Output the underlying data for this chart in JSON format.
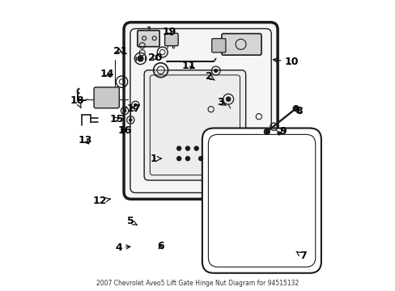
{
  "title": "2007 Chevrolet Aveo5 Lift Gate Hinge Nut Diagram for 94515132",
  "bg": "#ffffff",
  "lc": "#1a1a1a",
  "figsize": [
    4.89,
    3.6
  ],
  "dpi": 100,
  "labels": {
    "1": {
      "txt": [
        0.348,
        0.455
      ],
      "pt": [
        0.385,
        0.455
      ]
    },
    "2": {
      "txt": [
        0.538,
        0.738
      ],
      "pt": [
        0.558,
        0.725
      ]
    },
    "3": {
      "txt": [
        0.578,
        0.648
      ],
      "pt": [
        0.598,
        0.638
      ]
    },
    "4": {
      "txt": [
        0.228,
        0.148
      ],
      "pt": [
        0.278,
        0.152
      ]
    },
    "5": {
      "txt": [
        0.268,
        0.238
      ],
      "pt": [
        0.292,
        0.225
      ]
    },
    "6": {
      "txt": [
        0.372,
        0.152
      ],
      "pt": [
        0.372,
        0.168
      ]
    },
    "7": {
      "txt": [
        0.862,
        0.118
      ],
      "pt": [
        0.838,
        0.135
      ]
    },
    "8": {
      "txt": [
        0.848,
        0.618
      ],
      "pt": [
        0.832,
        0.608
      ]
    },
    "9": {
      "txt": [
        0.792,
        0.548
      ],
      "pt": [
        0.788,
        0.568
      ]
    },
    "10": {
      "txt": [
        0.822,
        0.788
      ],
      "pt": [
        0.748,
        0.798
      ]
    },
    "11": {
      "txt": [
        0.468,
        0.775
      ],
      "pt": [
        0.498,
        0.762
      ]
    },
    "12": {
      "txt": [
        0.162,
        0.308
      ],
      "pt": [
        0.208,
        0.318
      ]
    },
    "13": {
      "txt": [
        0.112,
        0.518
      ],
      "pt": [
        0.132,
        0.498
      ]
    },
    "14": {
      "txt": [
        0.188,
        0.748
      ],
      "pt": [
        0.205,
        0.728
      ]
    },
    "15": {
      "txt": [
        0.222,
        0.592
      ],
      "pt": [
        0.24,
        0.596
      ]
    },
    "16": {
      "txt": [
        0.248,
        0.552
      ],
      "pt": [
        0.262,
        0.558
      ]
    },
    "17": {
      "txt": [
        0.278,
        0.628
      ],
      "pt": [
        0.282,
        0.638
      ]
    },
    "18": {
      "txt": [
        0.085,
        0.655
      ],
      "pt": [
        0.098,
        0.628
      ]
    },
    "19": {
      "txt": [
        0.402,
        0.892
      ],
      "pt": [
        0.418,
        0.872
      ]
    },
    "20": {
      "txt": [
        0.352,
        0.802
      ],
      "pt": [
        0.365,
        0.788
      ]
    },
    "21": {
      "txt": [
        0.232,
        0.825
      ],
      "pt": [
        0.248,
        0.818
      ]
    }
  }
}
